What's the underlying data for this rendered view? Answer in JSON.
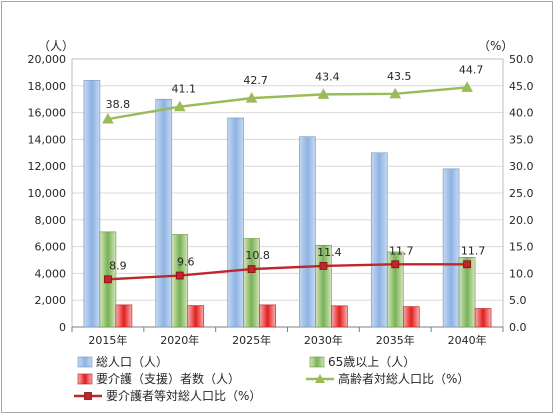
{
  "chart_data": {
    "type": "bar",
    "categories": [
      "2015年",
      "2020年",
      "2025年",
      "2030年",
      "2035年",
      "2040年"
    ],
    "left_axis": {
      "unit": "（人）",
      "ylim": [
        0,
        20000
      ],
      "step": 2000,
      "ticks": [
        "0",
        "2,000",
        "4,000",
        "6,000",
        "8,000",
        "10,000",
        "12,000",
        "14,000",
        "16,000",
        "18,000",
        "20,000"
      ]
    },
    "right_axis": {
      "unit": "（%）",
      "ylim": [
        0,
        50
      ],
      "step": 5,
      "ticks": [
        "0.0",
        "5.0",
        "10.0",
        "15.0",
        "20.0",
        "25.0",
        "30.0",
        "35.0",
        "40.0",
        "45.0",
        "50.0"
      ]
    },
    "series": [
      {
        "name": "総人口（人）",
        "kind": "bar",
        "axis": "left",
        "color": "#8db3e2",
        "values": [
          18400,
          17000,
          15600,
          14200,
          13000,
          11800
        ]
      },
      {
        "name": "65歳以上（人）",
        "kind": "bar",
        "axis": "left",
        "color": "#92c47d",
        "values": [
          7100,
          6900,
          6600,
          6100,
          5600,
          5200
        ]
      },
      {
        "name": "要介護（支援）者数（人）",
        "kind": "bar",
        "axis": "left",
        "color": "#e83030",
        "values": [
          1650,
          1600,
          1650,
          1580,
          1520,
          1380
        ]
      },
      {
        "name": "高齢者対総人口比（%）",
        "kind": "line",
        "axis": "right",
        "color": "#9bbb59",
        "marker": "triangle",
        "values": [
          38.8,
          41.1,
          42.7,
          43.4,
          43.5,
          44.7
        ],
        "labels": [
          "38.8",
          "41.1",
          "42.7",
          "43.4",
          "43.5",
          "44.7"
        ]
      },
      {
        "name": "要介護者等対総人口比（%）",
        "kind": "line",
        "axis": "right",
        "color": "#c0262c",
        "marker": "square",
        "values": [
          8.9,
          9.6,
          10.8,
          11.4,
          11.7,
          11.7
        ],
        "labels": [
          "8.9",
          "9.6",
          "10.8",
          "11.4",
          "11.7",
          "11.7"
        ]
      }
    ],
    "grid": true,
    "legend": "bottom"
  }
}
